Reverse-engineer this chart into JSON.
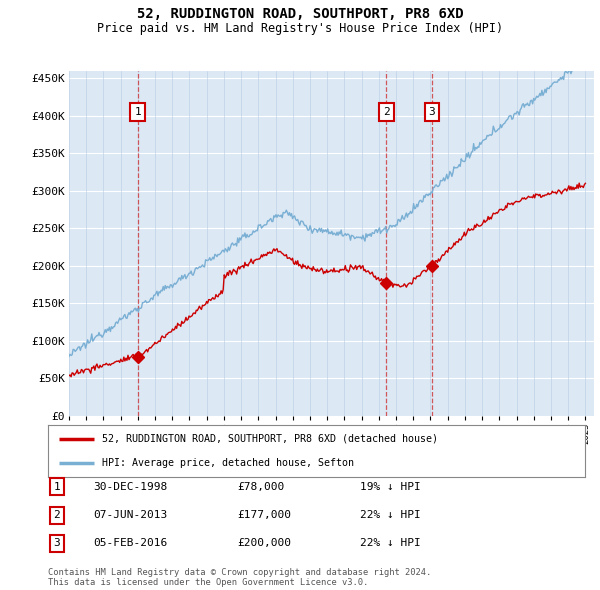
{
  "title": "52, RUDDINGTON ROAD, SOUTHPORT, PR8 6XD",
  "subtitle": "Price paid vs. HM Land Registry's House Price Index (HPI)",
  "legend_line1": "52, RUDDINGTON ROAD, SOUTHPORT, PR8 6XD (detached house)",
  "legend_line2": "HPI: Average price, detached house, Sefton",
  "sale_color": "#cc0000",
  "hpi_color": "#7aafd4",
  "plot_bg": "#dce8f4",
  "footer_text": "Contains HM Land Registry data © Crown copyright and database right 2024.\nThis data is licensed under the Open Government Licence v3.0.",
  "sales": [
    {
      "date_year": 1998.99,
      "price": 78000,
      "label": "1",
      "date_str": "30-DEC-1998",
      "pct": "19% ↓ HPI"
    },
    {
      "date_year": 2013.44,
      "price": 177000,
      "label": "2",
      "date_str": "07-JUN-2013",
      "pct": "22% ↓ HPI"
    },
    {
      "date_year": 2016.09,
      "price": 200000,
      "label": "3",
      "date_str": "05-FEB-2016",
      "pct": "22% ↓ HPI"
    }
  ],
  "ylim": [
    0,
    460000
  ],
  "yticks": [
    0,
    50000,
    100000,
    150000,
    200000,
    250000,
    300000,
    350000,
    400000,
    450000
  ],
  "xlim_start": 1995.0,
  "xlim_end": 2025.5,
  "xtick_years": [
    1995,
    1996,
    1997,
    1998,
    1999,
    2000,
    2001,
    2002,
    2003,
    2004,
    2005,
    2006,
    2007,
    2008,
    2009,
    2010,
    2011,
    2012,
    2013,
    2014,
    2015,
    2016,
    2017,
    2018,
    2019,
    2020,
    2021,
    2022,
    2023,
    2024,
    2025
  ]
}
